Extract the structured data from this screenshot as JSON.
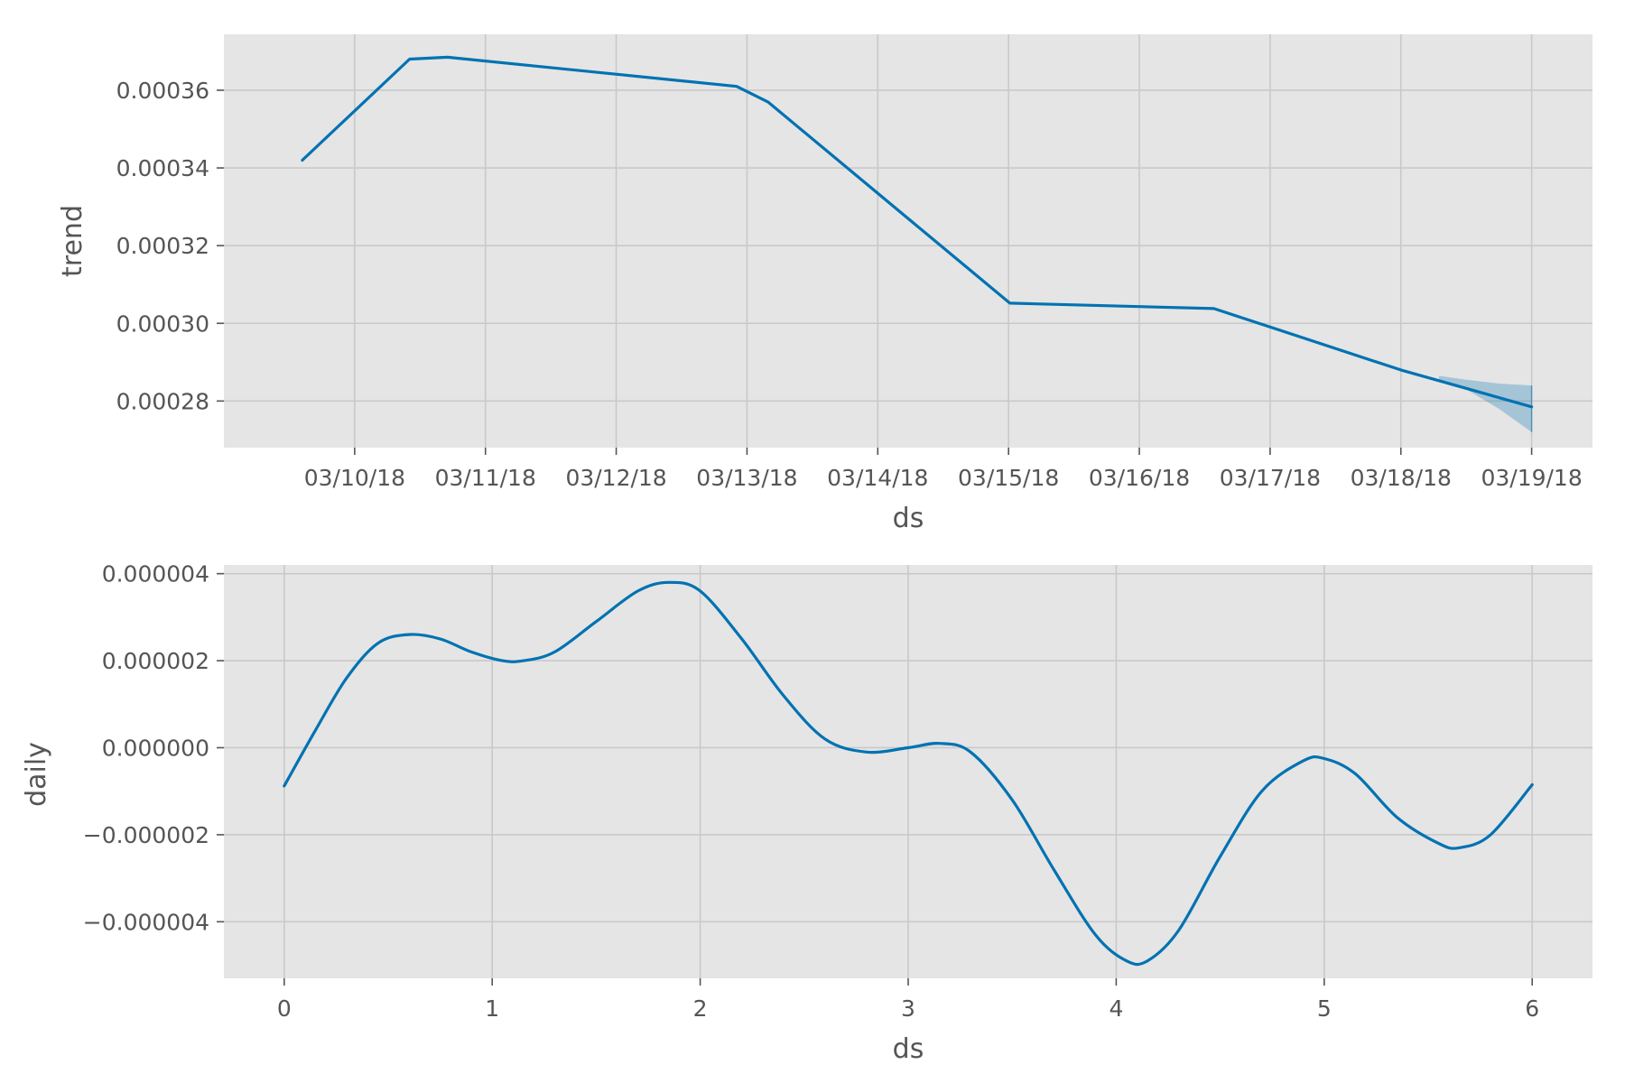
{
  "colors": {
    "line": "#0072b2",
    "band": "#0072b2",
    "plot_bg": "#e5e5e5",
    "grid": "#c9c9c9",
    "text": "#555555"
  },
  "chart_data": [
    {
      "type": "line",
      "xlabel": "ds",
      "ylabel": "trend",
      "x_axis": "date",
      "xlim": [
        "2018-03-09",
        "2018-03-19T11:10"
      ],
      "ylim": [
        0.000268,
        0.0003744
      ],
      "x_ticks": [
        {
          "value": "2018-03-10",
          "label": "03/10/18"
        },
        {
          "value": "2018-03-11",
          "label": "03/11/18"
        },
        {
          "value": "2018-03-12",
          "label": "03/12/18"
        },
        {
          "value": "2018-03-13",
          "label": "03/13/18"
        },
        {
          "value": "2018-03-14",
          "label": "03/14/18"
        },
        {
          "value": "2018-03-15",
          "label": "03/15/18"
        },
        {
          "value": "2018-03-16",
          "label": "03/16/18"
        },
        {
          "value": "2018-03-17",
          "label": "03/17/18"
        },
        {
          "value": "2018-03-18",
          "label": "03/18/18"
        },
        {
          "value": "2018-03-19",
          "label": "03/19/18"
        }
      ],
      "y_ticks": [
        {
          "value": 0.00028,
          "label": "0.00028"
        },
        {
          "value": 0.0003,
          "label": "0.00030"
        },
        {
          "value": 0.00032,
          "label": "0.00032"
        },
        {
          "value": 0.00034,
          "label": "0.00034"
        },
        {
          "value": 0.00036,
          "label": "0.00036"
        }
      ],
      "grid": true,
      "series": [
        {
          "x": [
            "2018-03-09T14:24",
            "2018-03-10T10:05",
            "2018-03-10T17:02",
            "2018-03-12T22:05",
            "2018-03-13T03:50",
            "2018-03-15T00:14",
            "2018-03-16T13:41",
            "2018-03-18T00:00",
            "2018-03-19T00:00"
          ],
          "y": [
            0.000342,
            0.000368,
            0.0003685,
            0.000361,
            0.000357,
            0.0003052,
            0.0003038,
            0.000288,
            0.0002785
          ]
        }
      ],
      "uncertainty": {
        "x": [
          "2018-03-18T07:00",
          "2018-03-18T12:00",
          "2018-03-18T18:00",
          "2018-03-19T00:00"
        ],
        "upper": [
          0.0002865,
          0.0002855,
          0.0002845,
          0.000284
        ],
        "lower": [
          0.0002855,
          0.000283,
          0.000278,
          0.000272
        ]
      }
    },
    {
      "type": "line",
      "xlabel": "ds",
      "ylabel": "daily",
      "xlim": [
        -0.29,
        6.29
      ],
      "ylim": [
        -5.3e-06,
        4.2e-06
      ],
      "x_ticks": [
        {
          "value": 0,
          "label": "0"
        },
        {
          "value": 1,
          "label": "1"
        },
        {
          "value": 2,
          "label": "2"
        },
        {
          "value": 3,
          "label": "3"
        },
        {
          "value": 4,
          "label": "4"
        },
        {
          "value": 5,
          "label": "5"
        },
        {
          "value": 6,
          "label": "6"
        }
      ],
      "y_ticks": [
        {
          "value": -4e-06,
          "label": "−0.000004"
        },
        {
          "value": -2e-06,
          "label": "−0.000002"
        },
        {
          "value": 0,
          "label": "0.000000"
        },
        {
          "value": 2e-06,
          "label": "0.000002"
        },
        {
          "value": 4e-06,
          "label": "0.000004"
        }
      ],
      "grid": true,
      "series": [
        {
          "x": [
            0,
            0.15,
            0.3,
            0.45,
            0.6,
            0.75,
            0.9,
            1.05,
            1.15,
            1.3,
            1.5,
            1.7,
            1.85,
            2.0,
            2.2,
            2.4,
            2.6,
            2.8,
            3.0,
            3.15,
            3.3,
            3.5,
            3.7,
            3.9,
            4.05,
            4.15,
            4.3,
            4.5,
            4.7,
            4.9,
            5.0,
            5.15,
            5.35,
            5.55,
            5.65,
            5.8,
            6.0
          ],
          "y": [
            -8.8e-07,
            4e-07,
            1.6e-06,
            2.4e-06,
            2.6e-06,
            2.5e-06,
            2.2e-06,
            2e-06,
            2e-06,
            2.2e-06,
            2.9e-06,
            3.6e-06,
            3.8e-06,
            3.6e-06,
            2.5e-06,
            1.2e-06,
            2e-07,
            -1e-07,
            0.0,
            1e-07,
            -1e-07,
            -1.2e-06,
            -2.8e-06,
            -4.3e-06,
            -4.9e-06,
            -4.9e-06,
            -4.2e-06,
            -2.5e-06,
            -1e-06,
            -3e-07,
            -2.5e-07,
            -6e-07,
            -1.6e-06,
            -2.2e-06,
            -2.3e-06,
            -2e-06,
            -8.5e-07
          ]
        }
      ]
    }
  ]
}
